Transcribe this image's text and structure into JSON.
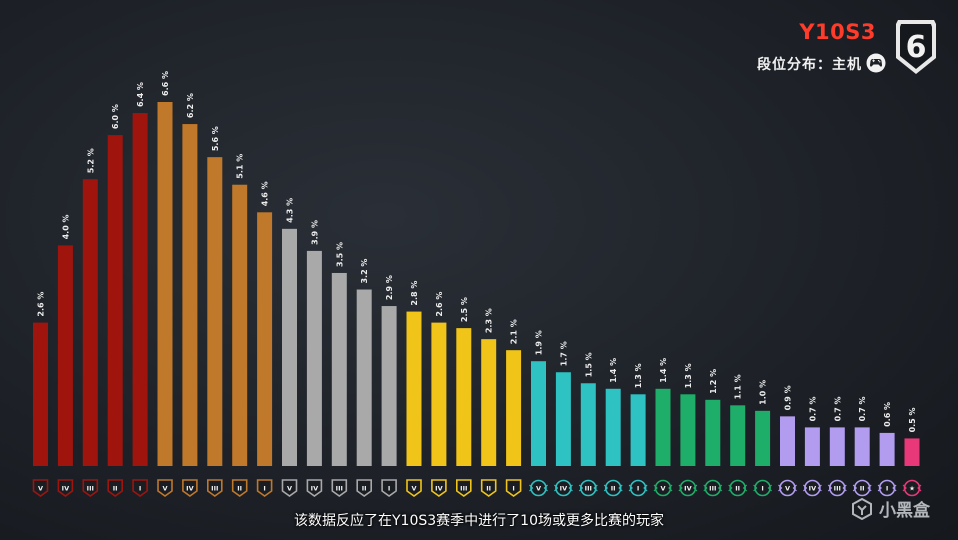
{
  "header": {
    "season": "Y10S3",
    "subtitle": "段位分布：主机",
    "logo_text": "6"
  },
  "caption": "该数据反应了在Y10S3赛季中进行了10场或更多比赛的玩家",
  "watermark": "小黑盒",
  "colors": {
    "copper": "#a0140e",
    "bronze": "#c0782a",
    "silver": "#a9a9a9",
    "gold": "#f0c419",
    "platinum": "#2ec2c2",
    "emerald": "#1fae6a",
    "diamond": "#b19cf0",
    "champion": "#e8387a",
    "accent": "#ff3b2a"
  },
  "chart_data": {
    "type": "bar",
    "values": [
      2.6,
      4.0,
      5.2,
      6.0,
      6.4,
      6.6,
      6.2,
      5.6,
      5.1,
      4.6,
      4.3,
      3.9,
      3.5,
      3.2,
      2.9,
      2.8,
      2.6,
      2.5,
      2.3,
      2.1,
      1.9,
      1.7,
      1.5,
      1.4,
      1.3,
      1.4,
      1.3,
      1.2,
      1.1,
      1.0,
      0.9,
      0.7,
      0.7,
      0.7,
      0.6,
      0.5
    ],
    "labels": [
      "2.6 %",
      "4.0 %",
      "5.2 %",
      "6.0 %",
      "6.4 %",
      "6.6 %",
      "6.2 %",
      "5.6 %",
      "5.1 %",
      "4.6 %",
      "4.3 %",
      "3.9 %",
      "3.5 %",
      "3.2 %",
      "2.9 %",
      "2.8 %",
      "2.6 %",
      "2.5 %",
      "2.3 %",
      "2.1 %",
      "1.9 %",
      "1.7 %",
      "1.5 %",
      "1.4 %",
      "1.3 %",
      "1.4 %",
      "1.3 %",
      "1.2 %",
      "1.1 %",
      "1.0 %",
      "0.9 %",
      "0.7 %",
      "0.7 %",
      "0.7 %",
      "0.6 %",
      "0.5 %"
    ],
    "tiers": [
      "copper",
      "copper",
      "copper",
      "copper",
      "copper",
      "bronze",
      "bronze",
      "bronze",
      "bronze",
      "bronze",
      "silver",
      "silver",
      "silver",
      "silver",
      "silver",
      "gold",
      "gold",
      "gold",
      "gold",
      "gold",
      "platinum",
      "platinum",
      "platinum",
      "platinum",
      "platinum",
      "emerald",
      "emerald",
      "emerald",
      "emerald",
      "emerald",
      "diamond",
      "diamond",
      "diamond",
      "diamond",
      "diamond",
      "champion"
    ],
    "rank_marks": [
      "V",
      "IV",
      "III",
      "II",
      "I",
      "V",
      "IV",
      "III",
      "II",
      "I",
      "V",
      "IV",
      "III",
      "II",
      "I",
      "V",
      "IV",
      "III",
      "II",
      "I",
      "V",
      "IV",
      "III",
      "II",
      "I",
      "V",
      "IV",
      "III",
      "II",
      "I",
      "V",
      "IV",
      "III",
      "II",
      "I",
      "★"
    ],
    "ylim": [
      0,
      6.6
    ],
    "grid": false,
    "legend": "none"
  }
}
